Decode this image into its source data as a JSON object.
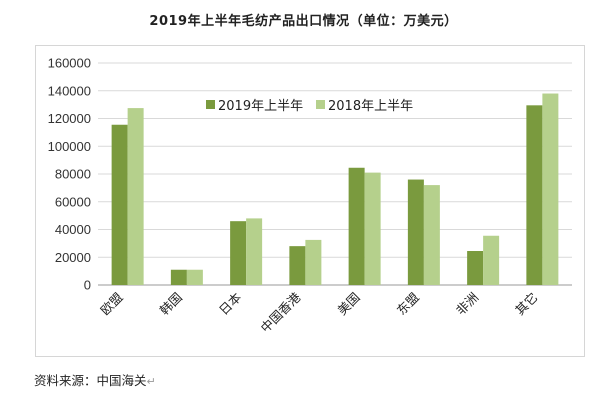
{
  "chart_data": {
    "type": "bar",
    "title": "2019年上半年毛纺产品出口情况（单位：万美元）",
    "categories": [
      "欧盟",
      "韩国",
      "日本",
      "中国香港",
      "美国",
      "东盟",
      "非洲",
      "其它"
    ],
    "series": [
      {
        "name": "2019年上半年",
        "color": "#7a9a3e",
        "values": [
          115500,
          11000,
          46000,
          28000,
          84500,
          76000,
          24500,
          129500
        ]
      },
      {
        "name": "2018年上半年",
        "color": "#b5d08c",
        "values": [
          127500,
          11000,
          48000,
          32500,
          81000,
          72000,
          35500,
          138000
        ]
      }
    ],
    "ylim": [
      0,
      160000
    ],
    "yticks": [
      0,
      20000,
      40000,
      60000,
      80000,
      100000,
      120000,
      140000,
      160000
    ],
    "grid": true,
    "legend_position": "top-center"
  },
  "source": "资料来源：中国海关",
  "return_mark": "↵"
}
